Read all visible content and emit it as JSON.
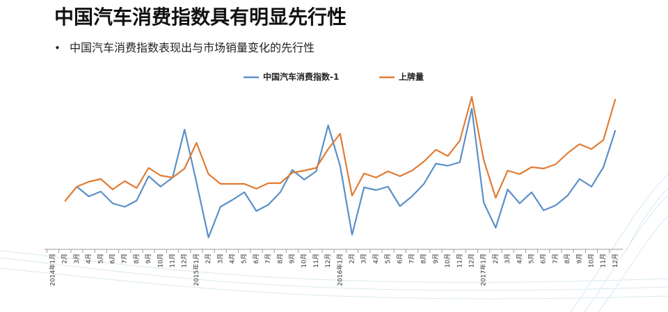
{
  "chart_data": {
    "type": "line",
    "title": "中国汽车消费指数具有明显先行性",
    "subtitle": "中国汽车消费指数表现出与市场销量变化的先行性",
    "categories": [
      "2014年1月",
      "2月",
      "3月",
      "4月",
      "5月",
      "6月",
      "7月",
      "8月",
      "9月",
      "10月",
      "11月",
      "12月",
      "2015年1月",
      "2月",
      "3月",
      "4月",
      "5月",
      "6月",
      "7月",
      "8月",
      "9月",
      "10月",
      "11月",
      "12月",
      "2016年1月",
      "2月",
      "3月",
      "4月",
      "5月",
      "6月",
      "7月",
      "8月",
      "9月",
      "10月",
      "11月",
      "12月",
      "2017年1月",
      "2月",
      "3月",
      "4月",
      "5月",
      "6月",
      "7月",
      "8月",
      "9月",
      "10月",
      "11月",
      "12月"
    ],
    "series": [
      {
        "name": "中国汽车消费指数-1",
        "color": "#5b8fc7",
        "values": [
          null,
          null,
          92,
          78,
          85,
          68,
          63,
          72,
          107,
          92,
          105,
          174,
          98,
          19,
          63,
          73,
          84,
          57,
          66,
          84,
          116,
          102,
          114,
          180,
          122,
          23,
          91,
          87,
          92,
          64,
          78,
          96,
          125,
          122,
          127,
          204,
          69,
          33,
          88,
          68,
          84,
          58,
          65,
          79,
          103,
          92,
          120,
          173
        ]
      },
      {
        "name": "上牌量",
        "color": "#e07b32",
        "values": [
          null,
          71,
          92,
          99,
          103,
          88,
          100,
          90,
          119,
          108,
          105,
          118,
          155,
          110,
          96,
          96,
          96,
          89,
          97,
          97,
          112,
          115,
          119,
          146,
          168,
          79,
          111,
          105,
          114,
          107,
          115,
          128,
          145,
          136,
          158,
          221,
          130,
          76,
          115,
          110,
          120,
          118,
          124,
          140,
          153,
          146,
          159,
          218
        ]
      }
    ],
    "ylim": [
      0,
      240
    ]
  }
}
